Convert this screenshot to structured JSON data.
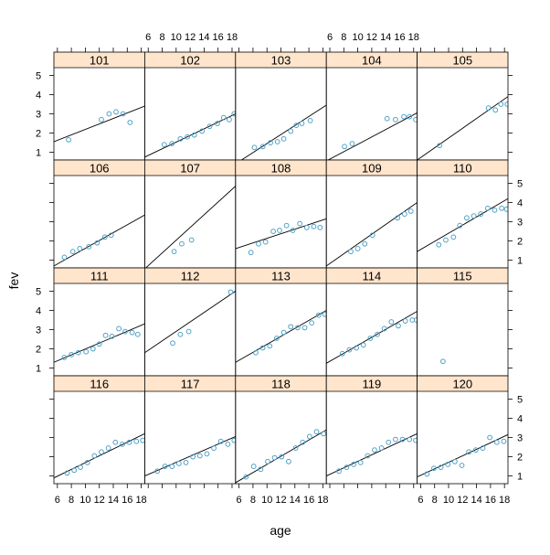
{
  "chart_data": {
    "type": "scatter",
    "layout": "lattice 5x4 multi-panel with per-panel fitted lines",
    "xlabel": "age",
    "ylabel": "fev",
    "xlim": [
      5.5,
      18.5
    ],
    "ylim": [
      0.6,
      5.4
    ],
    "x_ticks": [
      6,
      8,
      10,
      12,
      14,
      16,
      18
    ],
    "x_tick_labels": [
      "6",
      "8",
      "10",
      "12",
      "14",
      "16",
      "18"
    ],
    "y_ticks": [
      1,
      2,
      3,
      4,
      5
    ],
    "y_tick_labels": [
      "1",
      "2",
      "3",
      "4",
      "5"
    ],
    "point_color": "#4fa1c7",
    "strip_color": "#ffe5cc",
    "panels": [
      {
        "label": "101",
        "row": 0,
        "col": 0,
        "points": [
          [
            7.6,
            1.65
          ],
          [
            12.3,
            2.7
          ],
          [
            13.4,
            3.0
          ],
          [
            14.4,
            3.1
          ],
          [
            15.4,
            3.0
          ],
          [
            16.4,
            2.55
          ]
        ],
        "line": [
          [
            5.5,
            1.55
          ],
          [
            18.5,
            3.4
          ]
        ]
      },
      {
        "label": "102",
        "row": 0,
        "col": 1,
        "points": [
          [
            8.3,
            1.4
          ],
          [
            9.4,
            1.45
          ],
          [
            10.6,
            1.7
          ],
          [
            11.6,
            1.8
          ],
          [
            12.6,
            1.9
          ],
          [
            13.7,
            2.1
          ],
          [
            14.8,
            2.35
          ],
          [
            15.9,
            2.5
          ],
          [
            16.8,
            2.8
          ],
          [
            17.6,
            2.7
          ],
          [
            18.3,
            3.0
          ]
        ],
        "line": [
          [
            5.5,
            0.75
          ],
          [
            18.5,
            3.0
          ]
        ]
      },
      {
        "label": "103",
        "row": 0,
        "col": 2,
        "points": [
          [
            8.2,
            1.25
          ],
          [
            9.4,
            1.3
          ],
          [
            10.5,
            1.5
          ],
          [
            11.5,
            1.55
          ],
          [
            12.4,
            1.7
          ],
          [
            13.4,
            2.1
          ],
          [
            14.2,
            2.4
          ],
          [
            15.0,
            2.5
          ],
          [
            16.2,
            2.65
          ]
        ],
        "line": [
          [
            5.5,
            0.4
          ],
          [
            18.5,
            3.45
          ]
        ]
      },
      {
        "label": "104",
        "row": 0,
        "col": 3,
        "points": [
          [
            8.1,
            1.3
          ],
          [
            9.2,
            1.45
          ],
          [
            14.2,
            2.75
          ],
          [
            15.4,
            2.7
          ],
          [
            16.6,
            2.85
          ],
          [
            17.4,
            2.85
          ],
          [
            18.3,
            2.7
          ]
        ],
        "line": [
          [
            5.5,
            0.55
          ],
          [
            18.5,
            3.05
          ]
        ]
      },
      {
        "label": "105",
        "row": 0,
        "col": 4,
        "points": [
          [
            8.7,
            1.35
          ],
          [
            15.7,
            3.3
          ],
          [
            16.7,
            3.2
          ],
          [
            17.5,
            3.5
          ],
          [
            18.4,
            3.5
          ]
        ],
        "line": [
          [
            5.5,
            0.6
          ],
          [
            18.5,
            3.9
          ]
        ]
      },
      {
        "label": "106",
        "row": 1,
        "col": 0,
        "points": [
          [
            7.0,
            1.15
          ],
          [
            8.2,
            1.45
          ],
          [
            9.2,
            1.6
          ],
          [
            10.5,
            1.7
          ],
          [
            11.7,
            1.9
          ],
          [
            12.8,
            2.2
          ],
          [
            13.7,
            2.3
          ]
        ],
        "line": [
          [
            5.5,
            0.7
          ],
          [
            18.5,
            3.35
          ]
        ]
      },
      {
        "label": "107",
        "row": 1,
        "col": 1,
        "points": [
          [
            9.7,
            1.45
          ],
          [
            10.8,
            1.85
          ],
          [
            12.2,
            2.05
          ]
        ],
        "line": [
          [
            5.5,
            0.55
          ],
          [
            18.5,
            4.85
          ]
        ]
      },
      {
        "label": "108",
        "row": 1,
        "col": 2,
        "points": [
          [
            7.7,
            1.4
          ],
          [
            8.8,
            1.85
          ],
          [
            9.8,
            1.95
          ],
          [
            10.9,
            2.5
          ],
          [
            11.8,
            2.55
          ],
          [
            12.8,
            2.8
          ],
          [
            13.7,
            2.55
          ],
          [
            14.7,
            2.9
          ],
          [
            15.7,
            2.7
          ],
          [
            16.7,
            2.75
          ],
          [
            17.6,
            2.7
          ]
        ],
        "line": [
          [
            5.5,
            1.6
          ],
          [
            18.5,
            3.15
          ]
        ]
      },
      {
        "label": "109",
        "row": 1,
        "col": 3,
        "points": [
          [
            9.0,
            1.45
          ],
          [
            10.0,
            1.6
          ],
          [
            11.0,
            1.85
          ],
          [
            12.1,
            2.3
          ],
          [
            15.7,
            3.2
          ],
          [
            16.7,
            3.4
          ],
          [
            17.6,
            3.55
          ]
        ],
        "line": [
          [
            5.5,
            0.7
          ],
          [
            18.5,
            4.0
          ]
        ]
      },
      {
        "label": "110",
        "row": 1,
        "col": 4,
        "points": [
          [
            8.6,
            1.8
          ],
          [
            9.6,
            2.05
          ],
          [
            10.7,
            2.2
          ],
          [
            11.6,
            2.8
          ],
          [
            12.6,
            3.2
          ],
          [
            13.6,
            3.3
          ],
          [
            14.6,
            3.4
          ],
          [
            15.6,
            3.7
          ],
          [
            16.6,
            3.6
          ],
          [
            17.6,
            3.7
          ],
          [
            18.3,
            3.65
          ]
        ],
        "line": [
          [
            5.5,
            1.45
          ],
          [
            18.5,
            4.2
          ]
        ]
      },
      {
        "label": "111",
        "row": 2,
        "col": 0,
        "points": [
          [
            7.0,
            1.55
          ],
          [
            8.0,
            1.7
          ],
          [
            9.0,
            1.8
          ],
          [
            10.1,
            1.85
          ],
          [
            11.1,
            2.0
          ],
          [
            12.0,
            2.25
          ],
          [
            12.9,
            2.7
          ],
          [
            13.8,
            2.65
          ],
          [
            14.8,
            3.05
          ],
          [
            15.7,
            2.9
          ],
          [
            16.7,
            2.85
          ],
          [
            17.5,
            2.75
          ]
        ],
        "line": [
          [
            5.5,
            1.3
          ],
          [
            18.5,
            3.3
          ]
        ]
      },
      {
        "label": "112",
        "row": 2,
        "col": 1,
        "points": [
          [
            9.5,
            2.3
          ],
          [
            10.6,
            2.75
          ],
          [
            11.8,
            2.9
          ],
          [
            17.8,
            4.95
          ]
        ],
        "line": [
          [
            5.5,
            1.8
          ],
          [
            18.5,
            5.0
          ]
        ]
      },
      {
        "label": "113",
        "row": 2,
        "col": 2,
        "points": [
          [
            8.4,
            1.8
          ],
          [
            9.4,
            2.05
          ],
          [
            10.4,
            2.15
          ],
          [
            11.4,
            2.55
          ],
          [
            12.4,
            2.85
          ],
          [
            13.4,
            3.15
          ],
          [
            14.4,
            3.1
          ],
          [
            15.4,
            3.1
          ],
          [
            16.4,
            3.35
          ],
          [
            17.4,
            3.75
          ],
          [
            18.3,
            3.8
          ]
        ],
        "line": [
          [
            5.5,
            1.3
          ],
          [
            18.5,
            4.0
          ]
        ]
      },
      {
        "label": "114",
        "row": 2,
        "col": 3,
        "points": [
          [
            7.8,
            1.75
          ],
          [
            8.8,
            1.95
          ],
          [
            9.8,
            2.05
          ],
          [
            10.8,
            2.2
          ],
          [
            11.8,
            2.55
          ],
          [
            12.8,
            2.75
          ],
          [
            13.8,
            3.05
          ],
          [
            14.8,
            3.4
          ],
          [
            15.8,
            3.2
          ],
          [
            16.8,
            3.45
          ],
          [
            17.8,
            3.5
          ],
          [
            18.4,
            3.5
          ]
        ],
        "line": [
          [
            5.5,
            1.25
          ],
          [
            18.5,
            3.95
          ]
        ]
      },
      {
        "label": "115",
        "row": 2,
        "col": 4,
        "points": [
          [
            9.2,
            1.35
          ]
        ],
        "line": null
      },
      {
        "label": "116",
        "row": 3,
        "col": 0,
        "points": [
          [
            7.4,
            1.15
          ],
          [
            8.4,
            1.3
          ],
          [
            9.3,
            1.45
          ],
          [
            10.3,
            1.7
          ],
          [
            11.3,
            2.05
          ],
          [
            12.3,
            2.25
          ],
          [
            13.3,
            2.45
          ],
          [
            14.3,
            2.75
          ],
          [
            15.3,
            2.65
          ],
          [
            16.3,
            2.75
          ],
          [
            17.3,
            2.8
          ],
          [
            18.2,
            2.85
          ]
        ],
        "line": [
          [
            5.5,
            0.9
          ],
          [
            18.5,
            3.2
          ]
        ]
      },
      {
        "label": "117",
        "row": 3,
        "col": 1,
        "points": [
          [
            7.3,
            1.25
          ],
          [
            8.4,
            1.5
          ],
          [
            9.4,
            1.5
          ],
          [
            10.4,
            1.65
          ],
          [
            11.4,
            1.7
          ],
          [
            12.4,
            2.0
          ],
          [
            13.4,
            2.05
          ],
          [
            14.4,
            2.15
          ],
          [
            15.4,
            2.45
          ],
          [
            16.4,
            2.8
          ],
          [
            17.4,
            2.65
          ],
          [
            18.3,
            2.85
          ]
        ],
        "line": [
          [
            5.5,
            1.0
          ],
          [
            18.5,
            3.05
          ]
        ]
      },
      {
        "label": "118",
        "row": 3,
        "col": 2,
        "points": [
          [
            7.0,
            0.95
          ],
          [
            8.1,
            1.5
          ],
          [
            9.1,
            1.35
          ],
          [
            10.1,
            1.75
          ],
          [
            11.1,
            1.95
          ],
          [
            12.1,
            2.0
          ],
          [
            13.1,
            1.75
          ],
          [
            14.1,
            2.45
          ],
          [
            15.1,
            2.75
          ],
          [
            16.1,
            3.05
          ],
          [
            17.1,
            3.3
          ],
          [
            18.1,
            3.2
          ]
        ],
        "line": [
          [
            5.5,
            0.65
          ],
          [
            18.5,
            3.4
          ]
        ]
      },
      {
        "label": "119",
        "row": 3,
        "col": 3,
        "points": [
          [
            7.3,
            1.25
          ],
          [
            8.4,
            1.45
          ],
          [
            9.4,
            1.6
          ],
          [
            10.4,
            1.7
          ],
          [
            11.4,
            2.05
          ],
          [
            12.4,
            2.35
          ],
          [
            13.4,
            2.45
          ],
          [
            14.4,
            2.75
          ],
          [
            15.4,
            2.9
          ],
          [
            16.4,
            2.9
          ],
          [
            17.4,
            2.9
          ],
          [
            18.3,
            2.85
          ]
        ],
        "line": [
          [
            5.5,
            1.0
          ],
          [
            18.5,
            3.2
          ]
        ]
      },
      {
        "label": "120",
        "row": 3,
        "col": 4,
        "points": [
          [
            6.9,
            1.1
          ],
          [
            7.9,
            1.4
          ],
          [
            8.9,
            1.45
          ],
          [
            9.9,
            1.6
          ],
          [
            10.9,
            1.75
          ],
          [
            11.9,
            1.55
          ],
          [
            12.9,
            2.25
          ],
          [
            13.9,
            2.35
          ],
          [
            14.9,
            2.45
          ],
          [
            15.9,
            3.0
          ],
          [
            16.9,
            2.75
          ],
          [
            17.9,
            2.8
          ]
        ],
        "line": [
          [
            5.5,
            0.95
          ],
          [
            18.5,
            3.15
          ]
        ]
      }
    ]
  }
}
